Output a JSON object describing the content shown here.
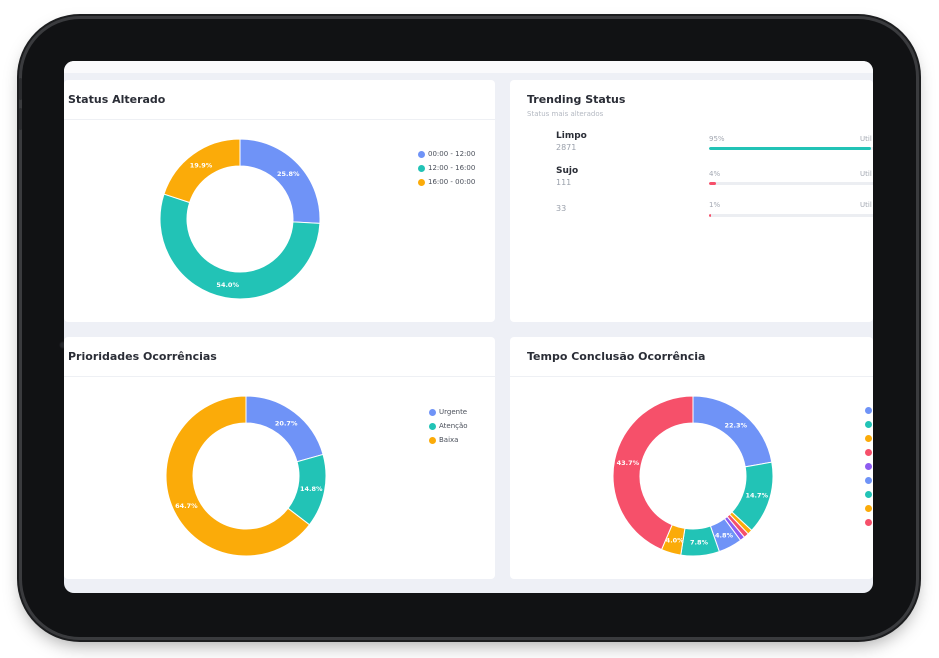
{
  "status_alterado": {
    "title": "Status Alterado",
    "legend": [
      {
        "label": "00:00 - 12:00",
        "color": "#6f93f7"
      },
      {
        "label": "12:00 - 16:00",
        "color": "#22c3b6"
      },
      {
        "label": "16:00 - 00:00",
        "color": "#fbab09"
      }
    ]
  },
  "trending_status": {
    "title": "Trending Status",
    "subtitle": "Status mais alterados",
    "items": [
      {
        "label": "Limpo",
        "count": "2871",
        "pct_label": "95%",
        "util": "Util",
        "percent": 95,
        "color": "#22c3b6"
      },
      {
        "label": "Sujo",
        "count": "111",
        "pct_label": "4%",
        "util": "Util",
        "percent": 4,
        "color": "#f6506a"
      },
      {
        "label": "",
        "count": "33",
        "pct_label": "1%",
        "util": "Util",
        "percent": 1,
        "color": "#f6506a"
      }
    ]
  },
  "prioridades": {
    "title": "Prioridades Ocorrências",
    "legend": [
      {
        "label": "Urgente",
        "color": "#6f93f7"
      },
      {
        "label": "Atenção",
        "color": "#22c3b6"
      },
      {
        "label": "Baixa",
        "color": "#fbab09"
      }
    ]
  },
  "tempo_conclusao": {
    "title": "Tempo Conclusão Ocorrência",
    "legend_colors": [
      "#6f93f7",
      "#22c3b6",
      "#fbab09",
      "#f6506a",
      "#8e5cf0",
      "#6f93f7",
      "#22c3b6",
      "#fbab09",
      "#f6506a"
    ]
  },
  "chart_data": [
    {
      "type": "pie",
      "title": "Status Alterado",
      "categories": [
        "00:00 - 12:00",
        "12:00 - 16:00",
        "16:00 - 00:00"
      ],
      "values": [
        25.8,
        54.0,
        19.9
      ],
      "value_labels": [
        "25.8%",
        "54.0%",
        "19.9%"
      ],
      "colors": [
        "#6f93f7",
        "#22c3b6",
        "#fbab09"
      ],
      "donut": true,
      "legend": "right"
    },
    {
      "type": "pie",
      "title": "Prioridades Ocorrências",
      "categories": [
        "Urgente",
        "Atenção",
        "Baixa"
      ],
      "values": [
        20.7,
        14.8,
        64.7
      ],
      "value_labels": [
        "20.7%",
        "14.8%",
        "64.7%"
      ],
      "colors": [
        "#6f93f7",
        "#22c3b6",
        "#fbab09"
      ],
      "donut": true,
      "legend": "right"
    },
    {
      "type": "pie",
      "title": "Tempo Conclusão Ocorrência",
      "values": [
        22.3,
        14.7,
        1.0,
        1.0,
        1.0,
        4.8,
        7.8,
        4.0,
        43.7
      ],
      "value_labels": [
        "22.3%",
        "14.7%",
        "",
        "",
        "",
        "4.8%",
        "7.8%",
        "4.0%",
        "43.7%"
      ],
      "colors": [
        "#6f93f7",
        "#22c3b6",
        "#fbab09",
        "#f6506a",
        "#8e5cf0",
        "#6f93f7",
        "#22c3b6",
        "#fbab09",
        "#f6506a"
      ],
      "donut": true,
      "legend": "right"
    }
  ]
}
